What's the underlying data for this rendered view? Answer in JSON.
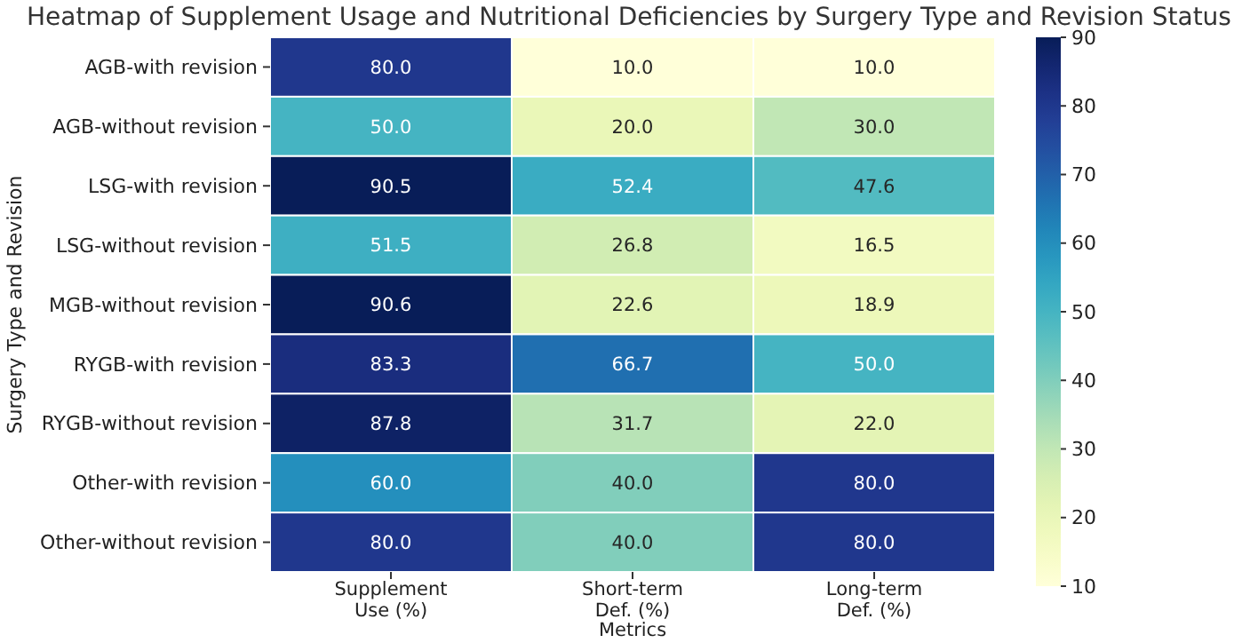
{
  "chart_data": {
    "type": "heatmap",
    "title": "Heatmap of Supplement Usage and Nutritional Deficiencies by Surgery Type and Revision Status",
    "xlabel": "Metrics",
    "ylabel": "Surgery Type and Revision",
    "categories": [
      "Supplement\nUse (%)",
      "Short-term\nDef. (%)",
      "Long-term\nDef. (%)"
    ],
    "y_categories": [
      "AGB-with revision",
      "AGB-without revision",
      "LSG-with revision",
      "LSG-without revision",
      "MGB-without revision",
      "RYGB-with revision",
      "RYGB-without revision",
      "Other-with revision",
      "Other-without revision"
    ],
    "cells": [
      [
        80.0,
        10.0,
        10.0
      ],
      [
        50.0,
        20.0,
        30.0
      ],
      [
        90.5,
        52.4,
        47.6
      ],
      [
        51.5,
        26.8,
        16.5
      ],
      [
        90.6,
        22.6,
        18.9
      ],
      [
        83.3,
        66.7,
        50.0
      ],
      [
        87.8,
        31.7,
        22.0
      ],
      [
        60.0,
        40.0,
        80.0
      ],
      [
        80.0,
        40.0,
        80.0
      ]
    ],
    "cell_labels": [
      [
        "80.0",
        "10.0",
        "10.0"
      ],
      [
        "50.0",
        "20.0",
        "30.0"
      ],
      [
        "90.5",
        "52.4",
        "47.6"
      ],
      [
        "51.5",
        "26.8",
        "16.5"
      ],
      [
        "90.6",
        "22.6",
        "18.9"
      ],
      [
        "83.3",
        "66.7",
        "50.0"
      ],
      [
        "87.8",
        "31.7",
        "22.0"
      ],
      [
        "60.0",
        "40.0",
        "80.0"
      ],
      [
        "80.0",
        "40.0",
        "80.0"
      ]
    ],
    "clim": [
      10,
      90
    ],
    "cticks": [
      10,
      20,
      30,
      40,
      50,
      60,
      70,
      80,
      90
    ]
  }
}
